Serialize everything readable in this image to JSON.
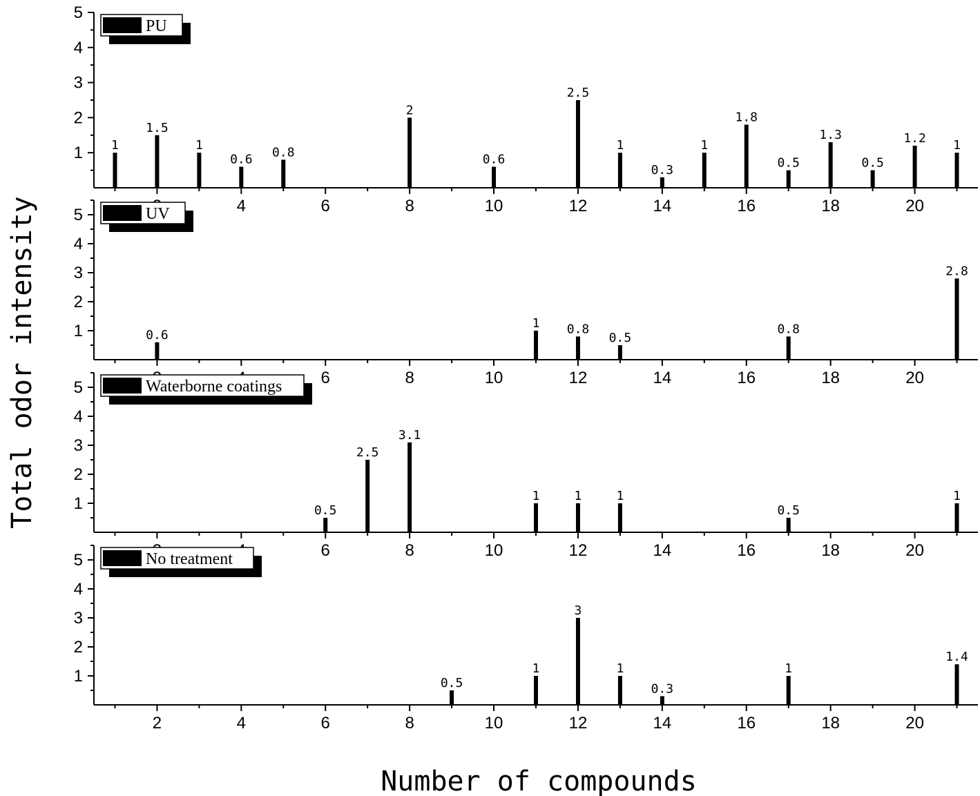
{
  "figure": {
    "ylabel": "Total odor intensity",
    "xlabel": "Number of compounds"
  },
  "chart_data": [
    {
      "type": "bar",
      "legend": "PU",
      "x": [
        1,
        2,
        3,
        4,
        5,
        8,
        10,
        12,
        13,
        14,
        15,
        16,
        17,
        18,
        19,
        20,
        21
      ],
      "values": [
        1,
        1.5,
        1,
        0.6,
        0.8,
        2,
        0.6,
        2.5,
        1,
        0.3,
        1,
        1.8,
        0.5,
        1.3,
        0.5,
        1.2,
        1
      ],
      "labels": [
        "1",
        "1.5",
        "1",
        "0.6",
        "0.8",
        "2",
        "0.6",
        "2.5",
        "1",
        "0.3",
        "1",
        "1.8",
        "0.5",
        "1.3",
        "0.5",
        "1.2",
        "1"
      ],
      "xlim": [
        0.5,
        21.5
      ],
      "ylim": [
        0,
        5
      ],
      "xticks": [
        "2",
        "4",
        "6",
        "8",
        "10",
        "12",
        "14",
        "16",
        "18",
        "20"
      ],
      "yticks": [
        "1",
        "2",
        "3",
        "4",
        "5"
      ]
    },
    {
      "type": "bar",
      "legend": "UV",
      "x": [
        2,
        11,
        12,
        13,
        17,
        21
      ],
      "values": [
        0.6,
        1,
        0.8,
        0.5,
        0.8,
        2.8
      ],
      "labels": [
        "0.6",
        "1",
        "0.8",
        "0.5",
        "0.8",
        "2.8"
      ],
      "xlim": [
        0.5,
        21.5
      ],
      "ylim": [
        0,
        5.5
      ],
      "xticks": [
        "2",
        "4",
        "6",
        "8",
        "10",
        "12",
        "14",
        "16",
        "18",
        "20"
      ],
      "yticks": [
        "1",
        "2",
        "3",
        "4",
        "5"
      ]
    },
    {
      "type": "bar",
      "legend": "Waterborne coatings",
      "x": [
        6,
        7,
        8,
        11,
        12,
        13,
        17,
        21
      ],
      "values": [
        0.5,
        2.5,
        3.1,
        1,
        1,
        1,
        0.5,
        1
      ],
      "labels": [
        "0.5",
        "2.5",
        "3.1",
        "1",
        "1",
        "1",
        "0.5",
        "1"
      ],
      "xlim": [
        0.5,
        21.5
      ],
      "ylim": [
        0,
        5.5
      ],
      "xticks": [
        "2",
        "4",
        "6",
        "8",
        "10",
        "12",
        "14",
        "16",
        "18",
        "20"
      ],
      "yticks": [
        "1",
        "2",
        "3",
        "4",
        "5"
      ]
    },
    {
      "type": "bar",
      "legend": "No treatment",
      "x": [
        9,
        11,
        12,
        13,
        14,
        17,
        21
      ],
      "values": [
        0.5,
        1,
        3,
        1,
        0.3,
        1,
        1.4
      ],
      "labels": [
        "0.5",
        "1",
        "3",
        "1",
        "0.3",
        "1",
        "1.4"
      ],
      "xlim": [
        0.5,
        21.5
      ],
      "ylim": [
        0,
        5.5
      ],
      "xticks": [
        "2",
        "4",
        "6",
        "8",
        "10",
        "12",
        "14",
        "16",
        "18",
        "20"
      ],
      "yticks": [
        "1",
        "2",
        "3",
        "4",
        "5"
      ]
    }
  ]
}
